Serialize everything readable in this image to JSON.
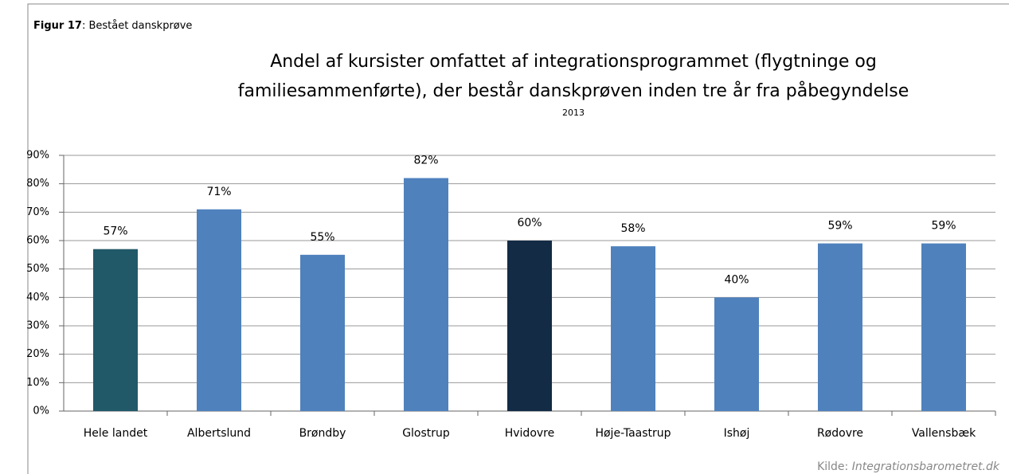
{
  "chart_data": {
    "type": "bar",
    "figure_number": "Figur 17",
    "figure_caption": ": Bestået danskprøve",
    "title": [
      "Andel af kursister omfattet af integrationsprogrammet (flygtninge og",
      "familiesammenførte), der består danskprøven inden tre år fra påbegyndelse"
    ],
    "subtitle": "2013",
    "categories": [
      "Hele landet",
      "Albertslund",
      "Brøndby",
      "Glostrup",
      "Hvidovre",
      "Høje-Taastrup",
      "Ishøj",
      "Rødovre",
      "Vallensbæk"
    ],
    "values": [
      57,
      71,
      55,
      82,
      60,
      58,
      40,
      59,
      59
    ],
    "value_labels": [
      "57%",
      "71%",
      "55%",
      "82%",
      "60%",
      "58%",
      "40%",
      "59%",
      "59%"
    ],
    "colors": [
      "#215968",
      "#4f81bd",
      "#4f81bd",
      "#4f81bd",
      "#132b45",
      "#4f81bd",
      "#4f81bd",
      "#4f81bd",
      "#4f81bd"
    ],
    "ylim": [
      0,
      90
    ],
    "yticks": [
      {
        "value": 0,
        "label": "0%"
      },
      {
        "value": 10,
        "label": "10%"
      },
      {
        "value": 20,
        "label": "20%"
      },
      {
        "value": 30,
        "label": "30%"
      },
      {
        "value": 40,
        "label": "40%"
      },
      {
        "value": 50,
        "label": "50%"
      },
      {
        "value": 60,
        "label": "60%"
      },
      {
        "value": 70,
        "label": "70%"
      },
      {
        "value": 80,
        "label": "80%"
      },
      {
        "value": 90,
        "label": "90%"
      }
    ],
    "grid": true,
    "source_label": "Kilde:",
    "source": "Integrationsbarometret.dk"
  }
}
